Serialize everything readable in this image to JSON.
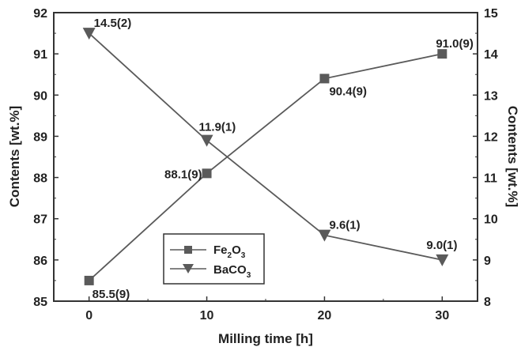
{
  "chart_data": {
    "type": "line",
    "xlabel": "Milling time [h]",
    "ylabel_left": "Contents [wt.%]",
    "ylabel_right": "Contents [wt.%]",
    "x": [
      0,
      10,
      20,
      30
    ],
    "xlim": [
      -3,
      33
    ],
    "xticks": [
      "0",
      "10",
      "20",
      "30"
    ],
    "ylim_left": [
      85,
      92
    ],
    "yticks_left": [
      "85",
      "86",
      "87",
      "88",
      "89",
      "90",
      "91",
      "92"
    ],
    "ylim_right": [
      8,
      15
    ],
    "yticks_right": [
      "8",
      "9",
      "10",
      "11",
      "12",
      "13",
      "14",
      "15"
    ],
    "legend_position": "lower-left",
    "series": [
      {
        "name": "Fe2O3",
        "axis": "left",
        "marker": "square",
        "color": "#5a5a5a",
        "values": [
          85.5,
          88.1,
          90.4,
          91.0
        ],
        "labels": [
          "85.5(9)",
          "88.1(9)",
          "90.4(9)",
          "91.0(9)"
        ]
      },
      {
        "name": "BaCO3",
        "axis": "right",
        "marker": "triangle-down",
        "color": "#5a5a5a",
        "values": [
          14.5,
          11.9,
          9.6,
          9.0
        ],
        "labels": [
          "14.5(2)",
          "11.9(1)",
          "9.6(1)",
          "9.0(1)"
        ]
      }
    ],
    "legend": {
      "fe2o3": {
        "base": "Fe",
        "sub1": "2",
        "mid": "O",
        "sub2": "3"
      },
      "baco3": {
        "base": "BaCO",
        "sub": "3"
      }
    }
  }
}
